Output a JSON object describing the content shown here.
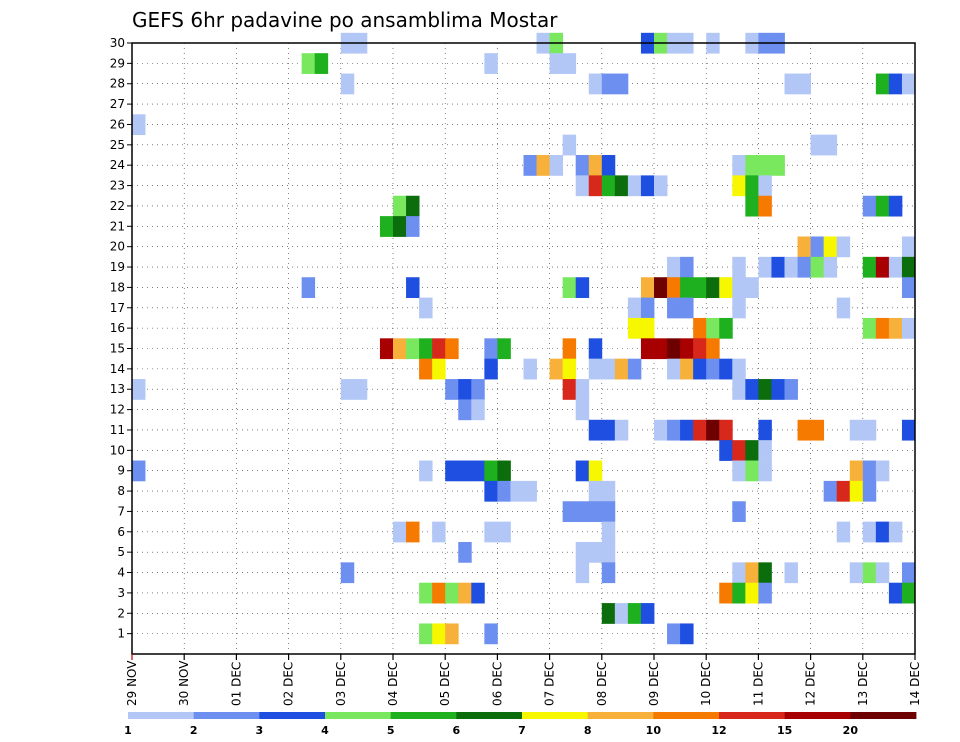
{
  "chart_data": {
    "type": "heatmap",
    "title": "GEFS 6hr padavine po ansamblima Mostar",
    "xlabel": "",
    "ylabel": "",
    "x_ticks": [
      "29 NOV",
      "30 NOV",
      "01 DEC",
      "02 DEC",
      "03 DEC",
      "04 DEC",
      "05 DEC",
      "06 DEC",
      "07 DEC",
      "08 DEC",
      "09 DEC",
      "10 DEC",
      "11 DEC",
      "12 DEC",
      "13 DEC",
      "14 DEC"
    ],
    "x_range_steps": [
      0,
      60
    ],
    "step_hours": 6,
    "y_ticks": [
      1,
      2,
      3,
      4,
      5,
      6,
      7,
      8,
      9,
      10,
      11,
      12,
      13,
      14,
      15,
      16,
      17,
      18,
      19,
      20,
      21,
      22,
      23,
      24,
      25,
      26,
      27,
      28,
      29,
      30
    ],
    "y_range": [
      0,
      30
    ],
    "colorbar": {
      "labels": [
        "1",
        "2",
        "3",
        "4",
        "5",
        "6",
        "7",
        "8",
        "10",
        "12",
        "15",
        "20"
      ],
      "colors": [
        "#b3c7f7",
        "#6d8ff0",
        "#1f4fe0",
        "#7ae85f",
        "#1fb01f",
        "#0b6d0b",
        "#f7f700",
        "#f7b13b",
        "#f77a00",
        "#d8281c",
        "#a80000",
        "#6e0000"
      ]
    },
    "cells": [
      [
        17,
        30,
        1
      ],
      [
        18,
        30,
        1
      ],
      [
        32,
        30,
        1
      ],
      [
        33,
        30,
        4
      ],
      [
        40,
        30,
        3
      ],
      [
        41,
        30,
        4
      ],
      [
        42,
        30,
        1
      ],
      [
        43,
        30,
        1
      ],
      [
        45,
        30,
        1
      ],
      [
        48,
        30,
        1
      ],
      [
        49,
        30,
        2
      ],
      [
        50,
        30,
        2
      ],
      [
        14,
        29,
        4
      ],
      [
        15,
        29,
        5
      ],
      [
        28,
        29,
        1
      ],
      [
        33,
        29,
        1
      ],
      [
        34,
        29,
        1
      ],
      [
        17,
        28,
        1
      ],
      [
        36,
        28,
        1
      ],
      [
        37,
        28,
        2
      ],
      [
        38,
        28,
        2
      ],
      [
        51,
        28,
        1
      ],
      [
        52,
        28,
        1
      ],
      [
        58,
        28,
        5
      ],
      [
        59,
        28,
        3
      ],
      [
        60,
        28,
        1
      ],
      [
        1,
        26,
        1
      ],
      [
        34,
        25,
        1
      ],
      [
        53,
        25,
        1
      ],
      [
        54,
        25,
        1
      ],
      [
        31,
        24,
        2
      ],
      [
        32,
        24,
        8
      ],
      [
        33,
        24,
        1
      ],
      [
        35,
        24,
        2
      ],
      [
        36,
        24,
        8
      ],
      [
        37,
        24,
        3
      ],
      [
        47,
        24,
        1
      ],
      [
        48,
        24,
        4
      ],
      [
        49,
        24,
        4
      ],
      [
        50,
        24,
        4
      ],
      [
        35,
        23,
        1
      ],
      [
        36,
        23,
        10
      ],
      [
        37,
        23,
        5
      ],
      [
        38,
        23,
        6
      ],
      [
        39,
        23,
        1
      ],
      [
        40,
        23,
        3
      ],
      [
        41,
        23,
        1
      ],
      [
        47,
        23,
        7
      ],
      [
        48,
        23,
        5
      ],
      [
        49,
        23,
        1
      ],
      [
        21,
        22,
        4
      ],
      [
        22,
        22,
        6
      ],
      [
        48,
        22,
        5
      ],
      [
        49,
        22,
        9
      ],
      [
        57,
        22,
        2
      ],
      [
        58,
        22,
        5
      ],
      [
        59,
        22,
        3
      ],
      [
        20,
        21,
        5
      ],
      [
        21,
        21,
        6
      ],
      [
        22,
        21,
        2
      ],
      [
        52,
        20,
        8
      ],
      [
        53,
        20,
        2
      ],
      [
        54,
        20,
        7
      ],
      [
        55,
        20,
        1
      ],
      [
        60,
        20,
        1
      ],
      [
        42,
        19,
        1
      ],
      [
        43,
        19,
        2
      ],
      [
        47,
        19,
        1
      ],
      [
        49,
        19,
        1
      ],
      [
        50,
        19,
        3
      ],
      [
        51,
        19,
        1
      ],
      [
        52,
        19,
        2
      ],
      [
        53,
        19,
        4
      ],
      [
        54,
        19,
        1
      ],
      [
        57,
        19,
        5
      ],
      [
        58,
        19,
        11
      ],
      [
        59,
        19,
        1
      ],
      [
        60,
        19,
        6
      ],
      [
        14,
        18,
        2
      ],
      [
        22,
        18,
        3
      ],
      [
        34,
        18,
        4
      ],
      [
        35,
        18,
        3
      ],
      [
        40,
        18,
        8
      ],
      [
        41,
        18,
        12
      ],
      [
        42,
        18,
        9
      ],
      [
        43,
        18,
        5
      ],
      [
        44,
        18,
        5
      ],
      [
        45,
        18,
        6
      ],
      [
        46,
        18,
        7
      ],
      [
        47,
        18,
        1
      ],
      [
        48,
        18,
        1
      ],
      [
        60,
        18,
        2
      ],
      [
        23,
        17,
        1
      ],
      [
        39,
        17,
        1
      ],
      [
        40,
        17,
        2
      ],
      [
        42,
        17,
        2
      ],
      [
        43,
        17,
        2
      ],
      [
        47,
        17,
        1
      ],
      [
        55,
        17,
        1
      ],
      [
        39,
        16,
        7
      ],
      [
        40,
        16,
        7
      ],
      [
        44,
        16,
        9
      ],
      [
        45,
        16,
        4
      ],
      [
        46,
        16,
        5
      ],
      [
        57,
        16,
        4
      ],
      [
        58,
        16,
        9
      ],
      [
        59,
        16,
        8
      ],
      [
        60,
        16,
        1
      ],
      [
        20,
        15,
        11
      ],
      [
        21,
        15,
        8
      ],
      [
        22,
        15,
        4
      ],
      [
        23,
        15,
        5
      ],
      [
        24,
        15,
        10
      ],
      [
        25,
        15,
        9
      ],
      [
        28,
        15,
        2
      ],
      [
        29,
        15,
        5
      ],
      [
        34,
        15,
        9
      ],
      [
        36,
        15,
        3
      ],
      [
        40,
        15,
        11
      ],
      [
        41,
        15,
        11
      ],
      [
        42,
        15,
        12
      ],
      [
        43,
        15,
        11
      ],
      [
        44,
        15,
        10
      ],
      [
        45,
        15,
        9
      ],
      [
        23,
        14,
        9
      ],
      [
        24,
        14,
        7
      ],
      [
        28,
        14,
        3
      ],
      [
        31,
        14,
        1
      ],
      [
        33,
        14,
        8
      ],
      [
        34,
        14,
        7
      ],
      [
        36,
        14,
        1
      ],
      [
        37,
        14,
        1
      ],
      [
        38,
        14,
        8
      ],
      [
        39,
        14,
        2
      ],
      [
        42,
        14,
        1
      ],
      [
        43,
        14,
        8
      ],
      [
        44,
        14,
        3
      ],
      [
        45,
        14,
        2
      ],
      [
        46,
        14,
        3
      ],
      [
        47,
        14,
        1
      ],
      [
        1,
        13,
        1
      ],
      [
        17,
        13,
        1
      ],
      [
        18,
        13,
        1
      ],
      [
        25,
        13,
        2
      ],
      [
        26,
        13,
        3
      ],
      [
        27,
        13,
        2
      ],
      [
        34,
        13,
        10
      ],
      [
        35,
        13,
        1
      ],
      [
        47,
        13,
        1
      ],
      [
        48,
        13,
        3
      ],
      [
        49,
        13,
        6
      ],
      [
        50,
        13,
        3
      ],
      [
        51,
        13,
        2
      ],
      [
        26,
        12,
        2
      ],
      [
        27,
        12,
        1
      ],
      [
        35,
        12,
        1
      ],
      [
        36,
        11,
        3
      ],
      [
        37,
        11,
        3
      ],
      [
        38,
        11,
        1
      ],
      [
        41,
        11,
        1
      ],
      [
        42,
        11,
        2
      ],
      [
        43,
        11,
        3
      ],
      [
        44,
        11,
        10
      ],
      [
        45,
        11,
        12
      ],
      [
        46,
        11,
        10
      ],
      [
        49,
        11,
        3
      ],
      [
        52,
        11,
        9
      ],
      [
        53,
        11,
        9
      ],
      [
        56,
        11,
        1
      ],
      [
        57,
        11,
        1
      ],
      [
        60,
        11,
        3
      ],
      [
        46,
        10,
        3
      ],
      [
        47,
        10,
        10
      ],
      [
        48,
        10,
        6
      ],
      [
        49,
        10,
        1
      ],
      [
        1,
        9,
        2
      ],
      [
        23,
        9,
        1
      ],
      [
        25,
        9,
        3
      ],
      [
        26,
        9,
        3
      ],
      [
        27,
        9,
        3
      ],
      [
        28,
        9,
        5
      ],
      [
        29,
        9,
        6
      ],
      [
        35,
        9,
        3
      ],
      [
        36,
        9,
        7
      ],
      [
        47,
        9,
        1
      ],
      [
        48,
        9,
        4
      ],
      [
        49,
        9,
        1
      ],
      [
        56,
        9,
        8
      ],
      [
        57,
        9,
        2
      ],
      [
        58,
        9,
        1
      ],
      [
        28,
        8,
        3
      ],
      [
        29,
        8,
        2
      ],
      [
        30,
        8,
        1
      ],
      [
        31,
        8,
        1
      ],
      [
        36,
        8,
        1
      ],
      [
        37,
        8,
        1
      ],
      [
        54,
        8,
        2
      ],
      [
        55,
        8,
        10
      ],
      [
        56,
        8,
        7
      ],
      [
        57,
        8,
        2
      ],
      [
        34,
        7,
        2
      ],
      [
        35,
        7,
        2
      ],
      [
        36,
        7,
        2
      ],
      [
        37,
        7,
        2
      ],
      [
        47,
        7,
        2
      ],
      [
        21,
        6,
        1
      ],
      [
        22,
        6,
        9
      ],
      [
        24,
        6,
        1
      ],
      [
        28,
        6,
        1
      ],
      [
        29,
        6,
        1
      ],
      [
        37,
        6,
        1
      ],
      [
        55,
        6,
        1
      ],
      [
        57,
        6,
        1
      ],
      [
        58,
        6,
        3
      ],
      [
        59,
        6,
        1
      ],
      [
        26,
        5,
        2
      ],
      [
        35,
        5,
        1
      ],
      [
        36,
        5,
        1
      ],
      [
        37,
        5,
        1
      ],
      [
        17,
        4,
        2
      ],
      [
        35,
        4,
        1
      ],
      [
        37,
        4,
        2
      ],
      [
        47,
        4,
        1
      ],
      [
        48,
        4,
        8
      ],
      [
        49,
        4,
        6
      ],
      [
        51,
        4,
        1
      ],
      [
        56,
        4,
        1
      ],
      [
        57,
        4,
        4
      ],
      [
        58,
        4,
        1
      ],
      [
        60,
        4,
        2
      ],
      [
        23,
        3,
        4
      ],
      [
        24,
        3,
        9
      ],
      [
        25,
        3,
        4
      ],
      [
        26,
        3,
        8
      ],
      [
        27,
        3,
        3
      ],
      [
        46,
        3,
        9
      ],
      [
        47,
        3,
        5
      ],
      [
        48,
        3,
        7
      ],
      [
        49,
        3,
        2
      ],
      [
        59,
        3,
        3
      ],
      [
        60,
        3,
        5
      ],
      [
        37,
        2,
        6
      ],
      [
        38,
        2,
        1
      ],
      [
        39,
        2,
        5
      ],
      [
        40,
        2,
        3
      ],
      [
        23,
        1,
        4
      ],
      [
        24,
        1,
        7
      ],
      [
        25,
        1,
        8
      ],
      [
        28,
        1,
        2
      ],
      [
        42,
        1,
        2
      ],
      [
        43,
        1,
        3
      ]
    ]
  }
}
